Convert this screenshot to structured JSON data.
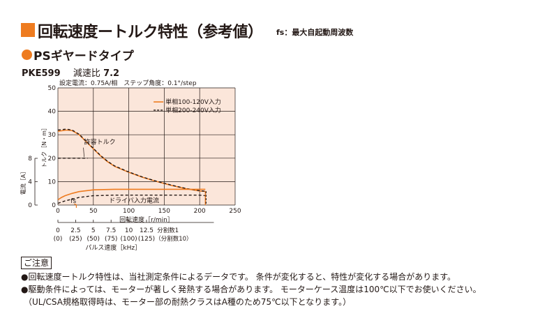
{
  "header": {
    "title": "回転速度ートルク特性（参考値）",
    "title_note": "fs：最大自起動周波数",
    "subtitle": "PSギヤードタイプ",
    "model": "PKE599",
    "ratio_label": "減速比",
    "ratio_value": "7.2"
  },
  "colors": {
    "accent": "#ee7b1f",
    "plot_bg": "#fbe6da",
    "series_ac100": "#ee7b1f",
    "series_ac200": "#231815"
  },
  "chart_data": {
    "type": "line",
    "conditions": "設定電流：0.75A/相　ステップ角度：0.1°/step",
    "xlabel": "回転速度［r/min］",
    "xlim": [
      0,
      250
    ],
    "x_ticks": [
      "0",
      "50",
      "100",
      "150",
      "200",
      "250"
    ],
    "ylabel_torque": "トルク［N・m］",
    "ylim_torque": [
      0,
      50
    ],
    "y_ticks_torque": [
      "0",
      "10",
      "20",
      "30",
      "40",
      "50"
    ],
    "ylabel_current": "電流［A］",
    "ylim_current": [
      0,
      8
    ],
    "y_ticks_current": [
      "0",
      "4",
      "8"
    ],
    "grid": true,
    "legend_position": "top-right",
    "legend": [
      "単相100-120V入力",
      "単相200-240V入力"
    ],
    "series": [
      {
        "name": "単相100-120V入力",
        "kind": "torque",
        "dash": false,
        "x": [
          0,
          12,
          20,
          30,
          40,
          50,
          60,
          70,
          80,
          100,
          120,
          140,
          160,
          180,
          200,
          208
        ],
        "y": [
          31.5,
          32,
          31.8,
          30,
          27,
          24,
          21,
          18.5,
          16.5,
          14,
          11.8,
          10,
          8.4,
          7,
          6,
          5.8
        ]
      },
      {
        "name": "単相200-240V入力",
        "kind": "torque",
        "dash": true,
        "x": [
          0,
          12,
          20,
          30,
          40,
          50,
          60,
          70,
          80,
          100,
          120,
          140,
          160,
          180,
          200,
          208
        ],
        "y": [
          32,
          32.4,
          32,
          30.2,
          27.2,
          24.2,
          21.2,
          18.7,
          16.7,
          14.1,
          11.9,
          10.1,
          8.5,
          7.1,
          6.1,
          5.9
        ]
      },
      {
        "name": "単相100-120V入力",
        "kind": "current",
        "dash": false,
        "x": [
          0,
          5,
          10,
          20,
          30,
          50,
          80,
          120,
          160,
          200,
          208
        ],
        "y": [
          0.9,
          1.3,
          1.6,
          2.0,
          2.3,
          2.6,
          2.7,
          2.7,
          2.7,
          2.7,
          2.7
        ]
      },
      {
        "name": "単相200-240V入力",
        "kind": "current",
        "dash": true,
        "x": [
          0,
          5,
          10,
          20,
          30,
          50,
          80,
          120,
          160,
          200,
          208
        ],
        "y": [
          0.3,
          0.5,
          0.7,
          1.0,
          1.3,
          1.6,
          1.7,
          1.7,
          1.7,
          1.7,
          1.6
        ]
      }
    ],
    "allowable_torque": {
      "label": "許容トルク",
      "y": 20,
      "x_end": 42
    },
    "annotations": {
      "current_label": "ドライバ入力電流",
      "fs_label": "fs"
    },
    "pulse_axis": {
      "label": "パルス速度［kHz］",
      "ticks": [
        "0",
        "2.5",
        "5",
        "7.5",
        "10",
        "12.5"
      ],
      "ticks_div10": [
        "(0)",
        "(25)",
        "(50)",
        "(75)",
        "(100)",
        "(125)"
      ],
      "label_div1": "分割数1",
      "label_div10": "（分割数10）"
    }
  },
  "notes": {
    "heading": "ご注意",
    "items": [
      "●回転速度ートルク特性は、当社測定条件によるデータです。 条件が変化すると、特性が変化する場合があります。",
      "●駆動条件によっては、モーターが著しく発熱する場合があります。 モーターケース温度は100℃以下でお使いください。",
      "（UL/CSA規格取得時は、モーター部の耐熱クラスはA種のため75℃以下となります。）"
    ]
  }
}
